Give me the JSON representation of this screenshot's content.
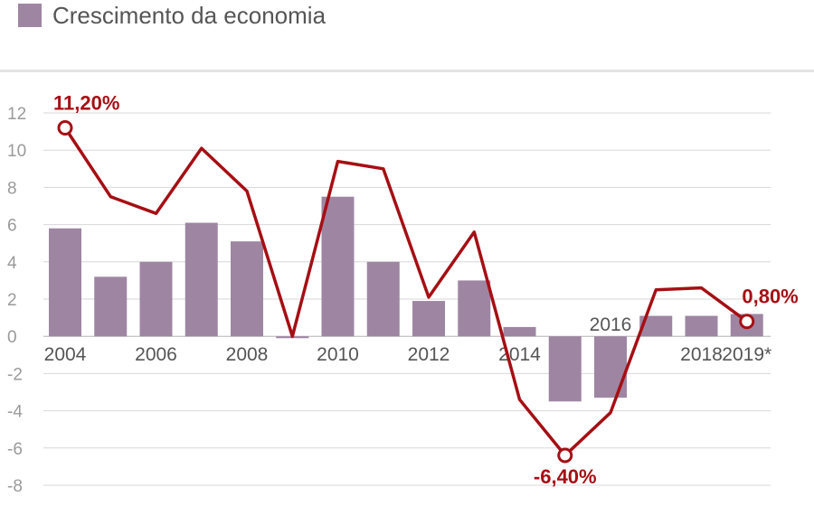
{
  "legend": {
    "label": "Crescimento da economia",
    "color": "#9e86a3"
  },
  "line_color": "#a50f14",
  "chart_data": {
    "type": "bar",
    "title": "",
    "xlabel": "",
    "ylabel": "",
    "ylim": [
      -8,
      12
    ],
    "yticks": [
      12,
      10,
      8,
      6,
      4,
      2,
      0,
      -2,
      -4,
      -6,
      -8
    ],
    "grid": true,
    "categories": [
      "2004",
      "2005",
      "2006",
      "2007",
      "2008",
      "2009",
      "2010",
      "2011",
      "2012",
      "2013",
      "2014",
      "2015",
      "2016",
      "2017",
      "2018",
      "2019*"
    ],
    "x_tick_labels": [
      {
        "index": 0,
        "label": "2004",
        "side": "below"
      },
      {
        "index": 2,
        "label": "2006",
        "side": "below"
      },
      {
        "index": 4,
        "label": "2008",
        "side": "below"
      },
      {
        "index": 6,
        "label": "2010",
        "side": "below"
      },
      {
        "index": 8,
        "label": "2012",
        "side": "below"
      },
      {
        "index": 10,
        "label": "2014",
        "side": "below"
      },
      {
        "index": 12,
        "label": "2016",
        "side": "above"
      },
      {
        "index": 14,
        "label": "2018",
        "side": "below"
      },
      {
        "index": 15,
        "label": "2019*",
        "side": "below"
      }
    ],
    "series": [
      {
        "type": "bar",
        "values": [
          5.8,
          3.2,
          4.0,
          6.1,
          5.1,
          -0.1,
          7.5,
          4.0,
          1.9,
          3.0,
          0.5,
          -3.5,
          -3.3,
          1.1,
          1.1,
          1.2
        ]
      },
      {
        "type": "line",
        "values": [
          11.2,
          7.5,
          6.6,
          10.1,
          7.8,
          0.0,
          9.4,
          9.0,
          2.1,
          5.6,
          -3.4,
          -6.4,
          -4.1,
          2.5,
          2.6,
          0.8
        ]
      }
    ],
    "annotations": [
      {
        "index": 0,
        "text": "11,20%",
        "position": "above"
      },
      {
        "index": 11,
        "text": "-6,40%",
        "position": "below"
      },
      {
        "index": 15,
        "text": "0,80%",
        "position": "above"
      }
    ]
  }
}
